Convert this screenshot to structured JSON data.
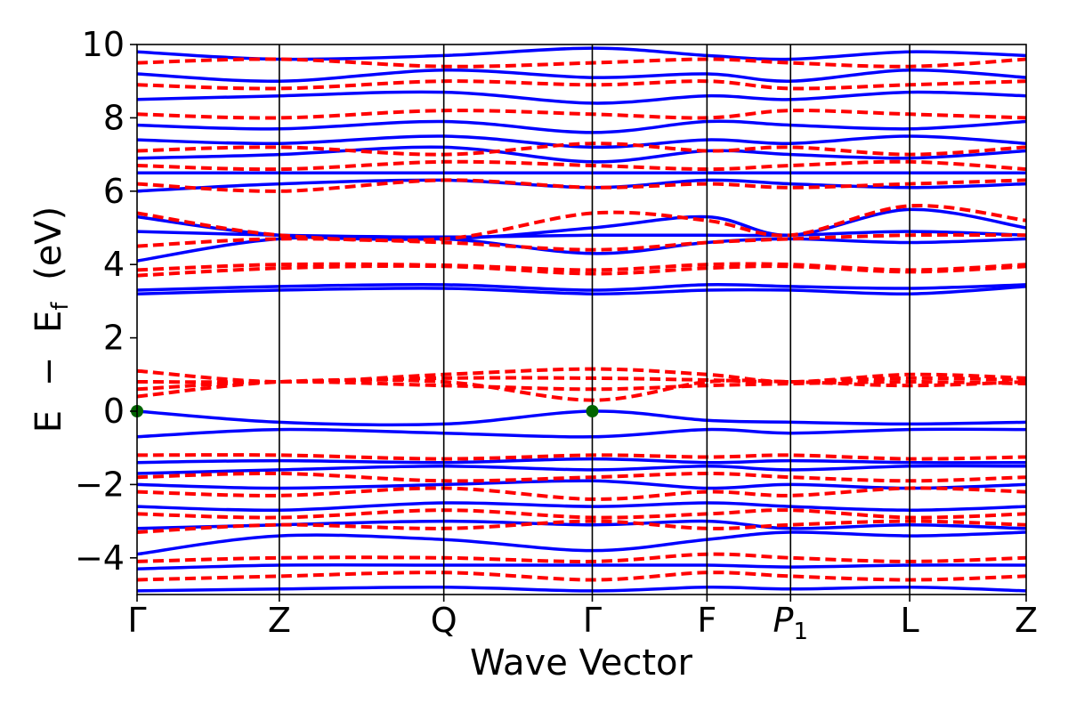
{
  "chart_data": {
    "type": "line",
    "xlabel": "Wave Vector",
    "ylabel_parts": {
      "E": "E",
      "minus": "−",
      "Ef_base": "E",
      "Ef_sub": "f",
      "unit": "(eV)"
    },
    "ylim": [
      -5,
      10
    ],
    "y_ticks": [
      {
        "value": -4,
        "label": "−4"
      },
      {
        "value": -2,
        "label": "−2"
      },
      {
        "value": 0,
        "label": "0"
      },
      {
        "value": 2,
        "label": "2"
      },
      {
        "value": 4,
        "label": "4"
      },
      {
        "value": 6,
        "label": "6"
      },
      {
        "value": 8,
        "label": "8"
      },
      {
        "value": 10,
        "label": "10"
      }
    ],
    "kpath_positions": [
      0,
      0.16,
      0.345,
      0.512,
      0.641,
      0.735,
      0.869,
      1.0
    ],
    "k_points": [
      {
        "label": "Γ",
        "sub": ""
      },
      {
        "label": "Z",
        "sub": ""
      },
      {
        "label": "Q",
        "sub": ""
      },
      {
        "label": "Γ",
        "sub": ""
      },
      {
        "label": "F",
        "sub": ""
      },
      {
        "label": "P",
        "sub": "1"
      },
      {
        "label": "L",
        "sub": ""
      },
      {
        "label": "Z",
        "sub": ""
      }
    ],
    "series": [
      {
        "style": "solid",
        "color": "#0000ff",
        "bands": [
          [
            -4.9,
            -4.85,
            -4.8,
            -4.9,
            -4.8,
            -4.85,
            -4.8,
            -4.9
          ],
          [
            -4.3,
            -4.2,
            -4.2,
            -4.2,
            -4.2,
            -4.25,
            -4.2,
            -4.2
          ],
          [
            -3.9,
            -3.4,
            -3.5,
            -3.8,
            -3.5,
            -3.3,
            -3.4,
            -3.3
          ],
          [
            -3.2,
            -3.1,
            -3.0,
            -3.1,
            -3.0,
            -3.2,
            -3.1,
            -3.2
          ],
          [
            -2.6,
            -2.7,
            -2.5,
            -2.6,
            -2.5,
            -2.6,
            -2.7,
            -2.6
          ],
          [
            -2.0,
            -2.1,
            -2.0,
            -1.9,
            -2.1,
            -2.0,
            -2.1,
            -2.0
          ],
          [
            -1.7,
            -1.6,
            -1.5,
            -1.6,
            -1.5,
            -1.6,
            -1.5,
            -1.5
          ],
          [
            -1.4,
            -1.35,
            -1.4,
            -1.3,
            -1.4,
            -1.35,
            -1.4,
            -1.4
          ],
          [
            -0.7,
            -0.5,
            -0.6,
            -0.7,
            -0.5,
            -0.6,
            -0.5,
            -0.5
          ],
          [
            0.0,
            -0.3,
            -0.35,
            0.0,
            -0.25,
            -0.3,
            -0.35,
            -0.3
          ],
          [
            3.2,
            3.3,
            3.35,
            3.2,
            3.3,
            3.3,
            3.2,
            3.4
          ],
          [
            3.3,
            3.4,
            3.45,
            3.3,
            3.45,
            3.4,
            3.35,
            3.45
          ],
          [
            4.1,
            4.7,
            4.7,
            4.3,
            4.6,
            4.7,
            4.6,
            4.7
          ],
          [
            4.9,
            4.8,
            4.75,
            4.8,
            4.8,
            4.8,
            4.9,
            4.8
          ],
          [
            5.3,
            4.8,
            4.7,
            5.0,
            5.3,
            4.8,
            5.5,
            5.0
          ],
          [
            6.0,
            6.2,
            6.3,
            6.1,
            6.3,
            6.2,
            6.1,
            6.2
          ],
          [
            6.5,
            6.5,
            6.5,
            6.5,
            6.5,
            6.5,
            6.5,
            6.5
          ],
          [
            6.9,
            7.0,
            7.2,
            6.8,
            7.1,
            7.0,
            6.9,
            7.1
          ],
          [
            7.4,
            7.3,
            7.5,
            7.2,
            7.4,
            7.3,
            7.5,
            7.3
          ],
          [
            7.8,
            7.7,
            7.9,
            7.6,
            7.9,
            7.8,
            7.7,
            7.9
          ],
          [
            8.5,
            8.6,
            8.7,
            8.4,
            8.6,
            8.5,
            8.7,
            8.6
          ],
          [
            9.2,
            9.0,
            9.3,
            9.1,
            9.2,
            9.0,
            9.3,
            9.1
          ],
          [
            9.8,
            9.6,
            9.7,
            9.9,
            9.7,
            9.6,
            9.8,
            9.7
          ]
        ]
      },
      {
        "style": "dashed",
        "color": "#ff0000",
        "bands": [
          [
            -4.6,
            -4.5,
            -4.4,
            -4.6,
            -4.4,
            -4.5,
            -4.6,
            -4.5
          ],
          [
            -4.1,
            -4.0,
            -4.0,
            -4.1,
            -3.9,
            -4.0,
            -4.1,
            -4.0
          ],
          [
            -3.3,
            -3.1,
            -3.2,
            -3.0,
            -3.2,
            -3.1,
            -3.0,
            -3.1
          ],
          [
            -2.8,
            -2.9,
            -2.7,
            -2.9,
            -2.8,
            -2.7,
            -2.9,
            -2.8
          ],
          [
            -2.2,
            -2.3,
            -2.1,
            -2.4,
            -2.2,
            -2.3,
            -2.1,
            -2.2
          ],
          [
            -1.8,
            -1.7,
            -1.9,
            -1.8,
            -1.7,
            -1.8,
            -1.9,
            -1.8
          ],
          [
            -1.2,
            -1.2,
            -1.3,
            -1.2,
            -1.25,
            -1.2,
            -1.3,
            -1.25
          ],
          [
            0.4,
            0.8,
            0.8,
            0.3,
            0.8,
            0.8,
            0.7,
            0.8
          ],
          [
            0.6,
            0.8,
            0.7,
            0.6,
            0.7,
            0.75,
            0.8,
            0.75
          ],
          [
            0.8,
            0.8,
            0.9,
            0.9,
            0.85,
            0.8,
            0.9,
            0.85
          ],
          [
            1.1,
            0.8,
            1.0,
            1.15,
            1.0,
            0.8,
            1.0,
            0.9
          ],
          [
            3.7,
            3.9,
            3.95,
            3.75,
            3.9,
            3.95,
            3.8,
            3.95
          ],
          [
            3.85,
            4.0,
            3.98,
            3.85,
            4.0,
            4.0,
            3.85,
            4.0
          ],
          [
            4.5,
            4.7,
            4.6,
            4.4,
            4.6,
            4.7,
            4.8,
            4.8
          ],
          [
            5.4,
            4.8,
            4.7,
            5.4,
            5.2,
            4.8,
            5.6,
            5.2
          ],
          [
            6.2,
            6.0,
            6.3,
            6.1,
            6.2,
            6.1,
            6.2,
            6.3
          ],
          [
            6.7,
            6.6,
            6.8,
            6.7,
            6.6,
            6.7,
            6.8,
            6.6
          ],
          [
            7.1,
            7.2,
            7.0,
            7.3,
            7.1,
            7.2,
            7.0,
            7.2
          ],
          [
            8.1,
            8.0,
            8.2,
            8.1,
            8.0,
            8.2,
            8.1,
            8.0
          ],
          [
            8.9,
            8.8,
            9.0,
            8.9,
            9.0,
            8.8,
            8.9,
            9.0
          ],
          [
            9.5,
            9.6,
            9.4,
            9.5,
            9.6,
            9.5,
            9.4,
            9.6
          ]
        ]
      }
    ],
    "markers": [
      {
        "x": 0,
        "y": 0.0,
        "color": "#006400"
      },
      {
        "x": 0.512,
        "y": 0.0,
        "color": "#006400"
      }
    ]
  }
}
